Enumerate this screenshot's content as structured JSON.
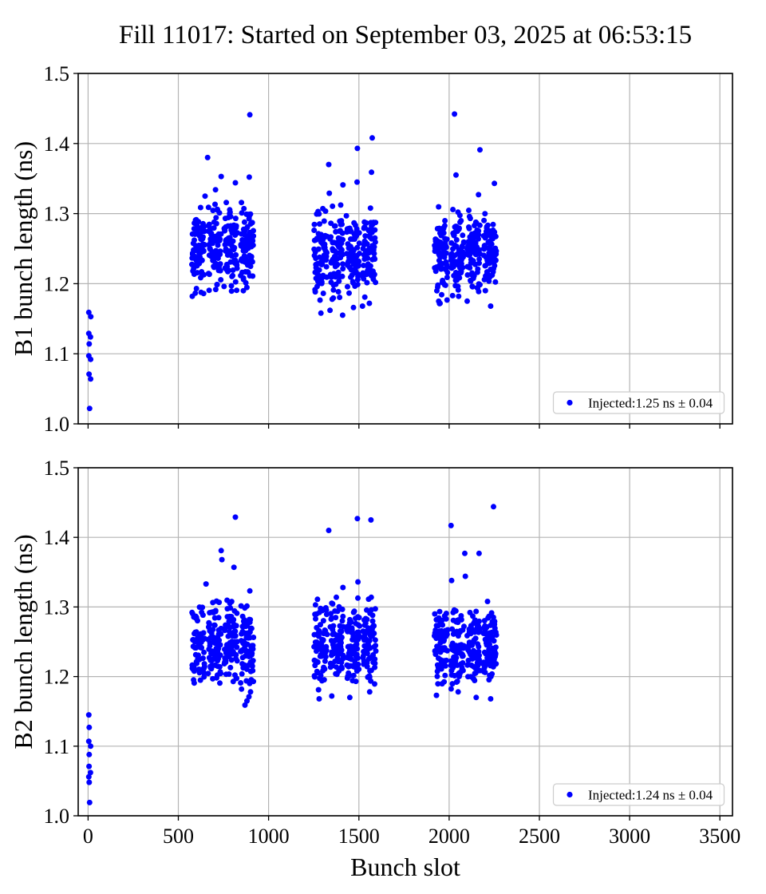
{
  "title": "Fill 11017: Started on September 03, 2025 at 06:53:15",
  "xlabel": "Bunch slot",
  "colors": {
    "marker": "#0000ff",
    "grid": "#b4b4b4",
    "spine": "#000000",
    "legend_border": "#cccccc",
    "background": "#ffffff"
  },
  "axes": {
    "xlim": [
      -55,
      3570
    ],
    "xticks": [
      0,
      500,
      1000,
      1500,
      2000,
      2500,
      3000,
      3500
    ],
    "xtick_labels": [
      "0",
      "500",
      "1000",
      "1500",
      "2000",
      "2500",
      "3000",
      "3500"
    ],
    "ylim": [
      1.0,
      1.5
    ],
    "yticks": [
      1.0,
      1.1,
      1.2,
      1.3,
      1.4,
      1.5
    ],
    "ytick_labels": [
      "1.0",
      "1.1",
      "1.2",
      "1.3",
      "1.4",
      "1.5"
    ],
    "grid": true,
    "legend_position": "lower right"
  },
  "chart_data": [
    {
      "type": "scatter",
      "series_name": "B1",
      "ylabel": "B1 bunch length (ns)",
      "legend_label": "Injected:1.25 ns ± 0.04",
      "injected_mean_ns": 1.25,
      "injected_std_ns": 0.04,
      "pilot_bunches": [
        [
          4,
          1.159
        ],
        [
          15,
          1.153
        ],
        [
          4,
          1.129
        ],
        [
          13,
          1.124
        ],
        [
          6,
          1.114
        ],
        [
          4,
          1.097
        ],
        [
          14,
          1.092
        ],
        [
          5,
          1.071
        ],
        [
          14,
          1.064
        ],
        [
          8,
          1.022
        ]
      ],
      "trains": [
        {
          "x_start": 575,
          "batches": 4,
          "batch_len": 72,
          "batch_gap": 18,
          "y_mean": 1.252,
          "y_std": 0.028,
          "y_min": 1.185,
          "y_max": 1.318,
          "seed": 11
        },
        {
          "x_start": 1252,
          "batches": 4,
          "batch_len": 72,
          "batch_gap": 18,
          "y_mean": 1.241,
          "y_std": 0.031,
          "y_min": 1.172,
          "y_max": 1.315,
          "seed": 22
        },
        {
          "x_start": 1920,
          "batches": 4,
          "batch_len": 72,
          "batch_gap": 18,
          "y_mean": 1.239,
          "y_std": 0.029,
          "y_min": 1.17,
          "y_max": 1.312,
          "seed": 33
        }
      ],
      "outliers": [
        [
          896,
          1.441
        ],
        [
          662,
          1.38
        ],
        [
          737,
          1.353
        ],
        [
          893,
          1.352
        ],
        [
          816,
          1.344
        ],
        [
          706,
          1.334
        ],
        [
          648,
          1.325
        ],
        [
          600,
          1.193
        ],
        [
          640,
          1.186
        ],
        [
          753,
          1.196
        ],
        [
          860,
          1.19
        ],
        [
          577,
          1.182
        ],
        [
          1574,
          1.408
        ],
        [
          1492,
          1.393
        ],
        [
          1333,
          1.37
        ],
        [
          1570,
          1.359
        ],
        [
          1490,
          1.345
        ],
        [
          1412,
          1.341
        ],
        [
          1336,
          1.329
        ],
        [
          1290,
          1.158
        ],
        [
          1340,
          1.162
        ],
        [
          1520,
          1.168
        ],
        [
          1558,
          1.172
        ],
        [
          1410,
          1.155
        ],
        [
          1470,
          1.166
        ],
        [
          2030,
          1.442
        ],
        [
          2171,
          1.391
        ],
        [
          2038,
          1.355
        ],
        [
          2251,
          1.343
        ],
        [
          2163,
          1.327
        ],
        [
          1950,
          1.172
        ],
        [
          2230,
          1.168
        ],
        [
          2100,
          1.175
        ]
      ]
    },
    {
      "type": "scatter",
      "series_name": "B2",
      "ylabel": "B2 bunch length (ns)",
      "legend_label": "Injected:1.24 ns ± 0.04",
      "injected_mean_ns": 1.24,
      "injected_std_ns": 0.04,
      "pilot_bunches": [
        [
          4,
          1.145
        ],
        [
          6,
          1.127
        ],
        [
          4,
          1.107
        ],
        [
          14,
          1.1
        ],
        [
          6,
          1.088
        ],
        [
          5,
          1.071
        ],
        [
          13,
          1.062
        ],
        [
          4,
          1.056
        ],
        [
          6,
          1.048
        ],
        [
          8,
          1.019
        ]
      ],
      "trains": [
        {
          "x_start": 575,
          "batches": 4,
          "batch_len": 72,
          "batch_gap": 18,
          "y_mean": 1.244,
          "y_std": 0.029,
          "y_min": 1.19,
          "y_max": 1.312,
          "seed": 44
        },
        {
          "x_start": 1252,
          "batches": 4,
          "batch_len": 72,
          "batch_gap": 18,
          "y_mean": 1.247,
          "y_std": 0.031,
          "y_min": 1.178,
          "y_max": 1.315,
          "seed": 55
        },
        {
          "x_start": 1920,
          "batches": 4,
          "batch_len": 72,
          "batch_gap": 18,
          "y_mean": 1.243,
          "y_std": 0.029,
          "y_min": 1.178,
          "y_max": 1.31,
          "seed": 66
        }
      ],
      "outliers": [
        [
          816,
          1.429
        ],
        [
          737,
          1.381
        ],
        [
          741,
          1.368
        ],
        [
          808,
          1.357
        ],
        [
          653,
          1.333
        ],
        [
          896,
          1.323
        ],
        [
          869,
          1.159
        ],
        [
          891,
          1.171
        ],
        [
          880,
          1.165
        ],
        [
          900,
          1.178
        ],
        [
          850,
          1.182
        ],
        [
          895,
          1.19
        ],
        [
          1492,
          1.427
        ],
        [
          1567,
          1.425
        ],
        [
          1333,
          1.41
        ],
        [
          1495,
          1.336
        ],
        [
          1412,
          1.328
        ],
        [
          1280,
          1.168
        ],
        [
          1350,
          1.172
        ],
        [
          1560,
          1.178
        ],
        [
          1450,
          1.17
        ],
        [
          2246,
          1.444
        ],
        [
          2011,
          1.417
        ],
        [
          2087,
          1.377
        ],
        [
          2166,
          1.377
        ],
        [
          2090,
          1.344
        ],
        [
          2014,
          1.338
        ],
        [
          1930,
          1.173
        ],
        [
          2230,
          1.168
        ],
        [
          2050,
          1.178
        ],
        [
          2150,
          1.17
        ]
      ]
    }
  ]
}
